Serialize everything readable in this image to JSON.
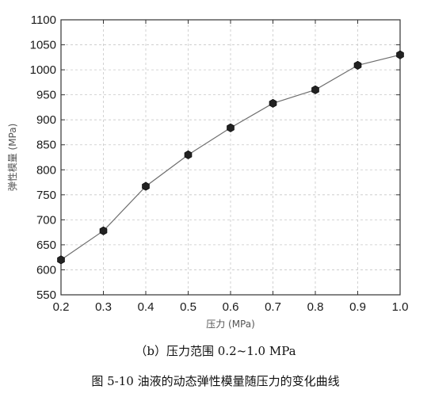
{
  "chart_data": {
    "type": "line",
    "title": "",
    "xlabel": "压力 (MPa)",
    "ylabel": "弹性模量 (MPa)",
    "xlim": [
      0.2,
      1.0
    ],
    "ylim": [
      550,
      1100
    ],
    "x_ticks": [
      "0.2",
      "0.3",
      "0.4",
      "0.5",
      "0.6",
      "0.7",
      "0.8",
      "0.9",
      "1.0"
    ],
    "y_ticks": [
      "550",
      "600",
      "650",
      "700",
      "750",
      "800",
      "850",
      "900",
      "950",
      "1000",
      "1050",
      "1100"
    ],
    "grid": true,
    "series": [
      {
        "x": [
          0.2,
          0.3,
          0.4,
          0.5,
          0.6,
          0.7,
          0.8,
          0.9,
          1.0
        ],
        "y": [
          620,
          678,
          767,
          830,
          884,
          933,
          960,
          1009,
          1030
        ]
      }
    ]
  },
  "captions": {
    "subcaption": "（b）压力范围 0.2~1.0 MPa",
    "figure_caption": "图 5-10 油液的动态弹性模量随压力的变化曲线"
  },
  "colors": {
    "line": "#6e6e6e",
    "marker": "#222222",
    "grid": "#c8c8c8",
    "axis": "#333333"
  }
}
